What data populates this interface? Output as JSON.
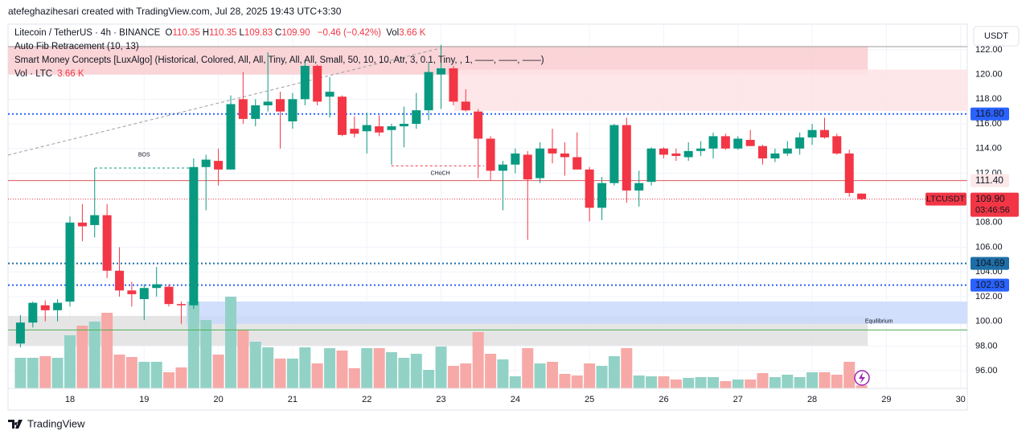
{
  "header": "atefeghazihesari created with TradingView.com, Jul 28, 2025 19:43 UTC+3:30",
  "footer": "TradingView",
  "currency_button": "USDT",
  "legend": {
    "symbol": "Litecoin / TetherUS · 4h · BINANCE",
    "ohlc": [
      {
        "key": "O",
        "value": "110.35"
      },
      {
        "key": "H",
        "value": "110.35"
      },
      {
        "key": "L",
        "value": "109.83"
      },
      {
        "key": "C",
        "value": "109.90"
      }
    ],
    "change": "−0.46 (−0.42%)",
    "vol_key": "Vol",
    "vol_value": "3.66 K",
    "indicators": [
      "Auto Fib Retracement (10, 13)",
      "Smart Money Concepts [LuxAlgo] (Historical, Colored, All, All, Tiny, All, All, Small, 50, 10, 10, Atr, 3, 0.1, Tiny, , 1, ——, ——, ——)"
    ],
    "volume_indicator": "Vol · LTC",
    "volume_indicator_value": "3.66 K"
  },
  "chart_data": {
    "type": "candlestick",
    "x": [
      17.333,
      17.5,
      17.667,
      17.833,
      18,
      18.167,
      18.333,
      18.5,
      18.667,
      18.833,
      19,
      19.167,
      19.333,
      19.5,
      19.667,
      19.833,
      20,
      20.167,
      20.333,
      20.5,
      20.667,
      20.833,
      21,
      21.167,
      21.333,
      21.5,
      21.667,
      21.833,
      22,
      22.167,
      22.333,
      22.5,
      22.667,
      22.833,
      23,
      23.167,
      23.333,
      23.5,
      23.667,
      23.833,
      24,
      24.167,
      24.333,
      24.5,
      24.667,
      24.833,
      25,
      25.167,
      25.333,
      25.5,
      25.667,
      25.833,
      26,
      26.167,
      26.333,
      26.5,
      26.667,
      26.833,
      27,
      27.167,
      27.333,
      27.5,
      27.667,
      27.833,
      28,
      28.167,
      28.333,
      28.5,
      28.667
    ],
    "open": [
      98.2,
      99.9,
      101.3,
      100.9,
      101.6,
      108.0,
      107.8,
      108.6,
      104.1,
      102.5,
      101.8,
      102.7,
      102.8,
      101.4,
      101.3,
      112.5,
      113.0,
      112.3,
      118.0,
      116.4,
      117.5,
      118.0,
      116.2,
      118.0,
      120.7,
      118.2,
      118.2,
      115.6,
      115.4,
      115.8,
      115.5,
      115.8,
      116.0,
      117.1,
      120.0,
      120.5,
      117.8,
      117.0,
      114.8,
      112.2,
      112.7,
      113.5,
      111.6,
      114.0,
      113.6,
      113.3,
      112.3,
      109.2,
      111.2,
      115.9,
      110.6,
      111.3,
      114.0,
      113.6,
      113.3,
      113.8,
      114.0,
      115.0,
      114.0,
      114.7,
      114.2,
      113.2,
      113.6,
      114.0,
      114.9,
      115.5,
      115.0,
      113.6,
      110.35
    ],
    "high": [
      100.5,
      101.6,
      101.7,
      101.8,
      108.5,
      109.5,
      112.4,
      109.5,
      106.0,
      103.2,
      103.0,
      104.4,
      103.0,
      101.6,
      113.2,
      113.5,
      114.0,
      118.3,
      120.2,
      118.0,
      121.8,
      118.6,
      118.5,
      121.2,
      120.8,
      119.8,
      118.3,
      116.6,
      116.9,
      116.7,
      116.0,
      117.4,
      118.5,
      121.0,
      122.4,
      120.7,
      118.8,
      117.2,
      115.0,
      113.0,
      114.0,
      113.8,
      114.5,
      115.6,
      114.5,
      115.3,
      112.5,
      111.7,
      116.0,
      116.5,
      112.2,
      114.1,
      114.1,
      114.0,
      114.5,
      114.6,
      115.3,
      115.2,
      115.0,
      115.5,
      114.3,
      114.0,
      114.6,
      115.3,
      116.0,
      116.5,
      115.2,
      113.9,
      110.35
    ],
    "low": [
      97.9,
      99.5,
      100.0,
      100.0,
      101.2,
      106.5,
      106.8,
      103.5,
      102.0,
      101.2,
      100.1,
      102.0,
      101.2,
      99.8,
      101.0,
      109.0,
      111.0,
      112.3,
      116.0,
      115.8,
      117.0,
      114.0,
      115.6,
      117.5,
      117.5,
      116.5,
      115.0,
      114.9,
      113.6,
      115.0,
      112.7,
      114.1,
      115.6,
      116.3,
      117.2,
      117.5,
      117.0,
      111.6,
      111.4,
      109.0,
      112.0,
      106.6,
      111.2,
      112.8,
      111.8,
      112.5,
      108.1,
      108.2,
      111.0,
      109.6,
      109.3,
      111.0,
      113.2,
      113.0,
      113.0,
      113.4,
      113.2,
      113.9,
      113.9,
      114.2,
      112.7,
      112.9,
      113.4,
      113.5,
      114.3,
      114.8,
      113.5,
      110.1,
      109.83
    ],
    "close": [
      99.9,
      101.5,
      100.9,
      101.5,
      108.0,
      107.7,
      108.6,
      104.1,
      102.5,
      102.2,
      102.7,
      103.0,
      101.4,
      101.3,
      112.5,
      113.1,
      112.3,
      117.6,
      116.4,
      117.5,
      117.8,
      117.0,
      118.0,
      120.7,
      117.8,
      118.6,
      115.1,
      115.2,
      115.9,
      115.3,
      115.8,
      116.0,
      117.1,
      120.2,
      120.5,
      117.8,
      117.1,
      114.8,
      112.2,
      112.7,
      113.6,
      111.5,
      114.0,
      113.6,
      113.3,
      112.3,
      109.2,
      111.2,
      115.9,
      110.6,
      111.2,
      114.0,
      113.5,
      113.4,
      113.8,
      114.0,
      115.0,
      114.0,
      114.8,
      114.2,
      113.2,
      113.6,
      114.0,
      114.9,
      115.5,
      114.9,
      113.6,
      110.4,
      109.9
    ],
    "volume": [
      38,
      38,
      40,
      38,
      66,
      78,
      83,
      94,
      42,
      39,
      33,
      33,
      20,
      26,
      108,
      85,
      42,
      114,
      73,
      58,
      51,
      37,
      37,
      51,
      31,
      50,
      47,
      25,
      50,
      50,
      45,
      38,
      43,
      23,
      52,
      28,
      31,
      70,
      43,
      36,
      15,
      50,
      31,
      33,
      18,
      16,
      31,
      28,
      40,
      50,
      16,
      15,
      15,
      11,
      13,
      14,
      14,
      9,
      11,
      11,
      19,
      14,
      17,
      14,
      20,
      20,
      17,
      33,
      3.66
    ],
    "up_color": "#089981",
    "down_color": "#f23645",
    "up_volume_color": "#92d2c6",
    "down_volume_color": "#f7a9a7",
    "xlim": [
      17.166,
      30.09
    ],
    "xticks": [
      18,
      19,
      20,
      21,
      22,
      23,
      24,
      25,
      26,
      27,
      28,
      29,
      30
    ],
    "ylim": [
      94.57,
      124.08
    ],
    "yticks": [
      {
        "value": 96,
        "label": "96.00"
      },
      {
        "value": 98,
        "label": "98.00"
      },
      {
        "value": 100,
        "label": "100.00"
      },
      {
        "value": 102,
        "label": "102.00"
      },
      {
        "value": 104,
        "label": "104.00"
      },
      {
        "value": 106,
        "label": "106.00"
      },
      {
        "value": 108,
        "label": "108.00"
      },
      {
        "value": 112,
        "label": "112.00"
      },
      {
        "value": 114,
        "label": "114.00"
      },
      {
        "value": 116,
        "label": "116.00"
      },
      {
        "value": 118,
        "label": "118.00"
      },
      {
        "value": 120,
        "label": "120.00"
      },
      {
        "value": 122,
        "label": "122.00"
      }
    ],
    "y2lim": [
      0,
      400
    ],
    "grid": true,
    "zones": [
      {
        "from": 17.166,
        "to": 28.75,
        "range": [
          120.0,
          122.3
        ],
        "color": "#f9cdd0"
      },
      {
        "from": 23.18,
        "to": 30.09,
        "range": [
          117.05,
          120.4
        ],
        "color": "#fde3e5"
      },
      {
        "from": 17.166,
        "to": 28.75,
        "range": [
          98.03,
          100.44
        ],
        "color": "#e0e0e2"
      },
      {
        "from": 19.57,
        "to": 30.09,
        "range": [
          99.8,
          101.6
        ],
        "color": "#c9d9fb"
      }
    ],
    "lines": [
      {
        "from": [
          17.166,
          113.47
        ],
        "to": [
          22.99,
          122.13
        ],
        "color": "#9e9e9e",
        "dash": "4 3"
      },
      {
        "from": [
          17.166,
          122.26
        ],
        "to": [
          30.09,
          122.26
        ],
        "color": "#9e9e9e",
        "dash": ""
      },
      {
        "from": [
          17.166,
          99.3
        ],
        "to": [
          30.09,
          99.3
        ],
        "color": "#4caf50",
        "dash": ""
      },
      {
        "from": [
          18.336,
          112.42
        ],
        "to": [
          19.658,
          112.42
        ],
        "color": "#089981",
        "dash": "3 3"
      },
      {
        "from": [
          22.33,
          112.6
        ],
        "to": [
          23.58,
          112.6
        ],
        "color": "#f23645",
        "dash": "3 3"
      }
    ],
    "annotations": [
      {
        "text": "BOS",
        "at": [
          19.0,
          113.5
        ],
        "color": "#089981"
      },
      {
        "text": "CHoCH",
        "at": [
          22.99,
          112.0
        ],
        "color": "#f23645"
      },
      {
        "text": "Equilibrium",
        "at": [
          28.9,
          100.0
        ],
        "color": "#8bc48d"
      }
    ],
    "levels": [
      {
        "value": 116.8,
        "label": "116.80",
        "color": "#2962ff",
        "style": "dotted",
        "badge": "#2962ff",
        "text_color": "#ffffff"
      },
      {
        "value": 111.4,
        "label": "111.40",
        "color": "#e0565b",
        "style": "solid",
        "badge": "#fde8e9",
        "text_color": "#131722"
      },
      {
        "value": 104.69,
        "label": "104.69",
        "color": "#1e6fa8",
        "style": "dotted",
        "badge": "#1e6fa8",
        "text_color": "#ffffff"
      },
      {
        "value": 102.93,
        "label": "102.93",
        "color": "#2962ff",
        "style": "dotted",
        "badge": "#2962ff",
        "text_color": "#ffffff"
      }
    ],
    "current": {
      "value": 109.9,
      "label": "109.90",
      "symbol": "LTCUSDT",
      "countdown": "03:46:56",
      "color": "#f23645"
    }
  }
}
